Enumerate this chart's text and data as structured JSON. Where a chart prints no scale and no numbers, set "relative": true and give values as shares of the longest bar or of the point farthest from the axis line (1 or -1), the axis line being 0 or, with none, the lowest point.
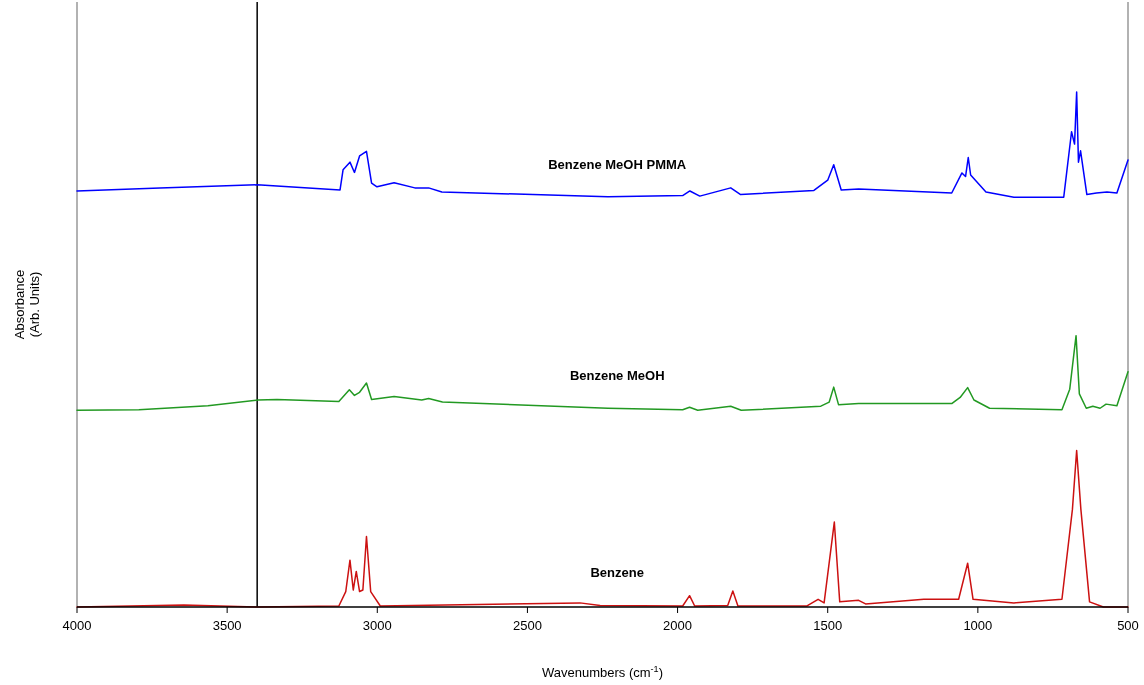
{
  "chart_data": {
    "type": "line",
    "relative": true,
    "xlabel": "Wavenumbers (cm$^{-1}$)",
    "ylabel": "Absorbance\n(Arb. Units)",
    "xlim": [
      4000,
      500
    ],
    "xticks": [
      4000,
      3500,
      3000,
      2500,
      2000,
      1500,
      1000,
      500
    ],
    "ref_lines": [
      {
        "axis": "x",
        "value": 3400,
        "color": "#000000"
      }
    ],
    "series": [
      {
        "name": "Benzene MeOH PMMA",
        "color": "#0000ff",
        "x": [
          4000,
          3724,
          3400,
          3124,
          3114,
          3091,
          3076,
          3059,
          3036,
          3019,
          3001,
          2944,
          2875,
          2829,
          2785,
          2232,
          1983,
          1959,
          1926,
          1823,
          1790,
          1546,
          1500,
          1480,
          1455,
          1397,
          1087,
          1053,
          1041,
          1032,
          1024,
          973,
          880,
          714,
          688,
          678,
          671,
          665,
          658,
          637,
          605,
          570,
          537,
          500
        ],
        "values": [
          0.808,
          0.814,
          0.82,
          0.81,
          0.849,
          0.864,
          0.844,
          0.876,
          0.885,
          0.823,
          0.816,
          0.824,
          0.814,
          0.814,
          0.806,
          0.797,
          0.799,
          0.808,
          0.798,
          0.814,
          0.801,
          0.809,
          0.829,
          0.859,
          0.81,
          0.812,
          0.804,
          0.843,
          0.836,
          0.873,
          0.839,
          0.806,
          0.796,
          0.796,
          0.923,
          0.899,
          1.0,
          0.864,
          0.886,
          0.801,
          0.804,
          0.806,
          0.804,
          0.868
        ]
      },
      {
        "name": "Benzene MeOH",
        "color": "#229922",
        "x": [
          4000,
          3794,
          3564,
          3397,
          3334,
          3128,
          3093,
          3076,
          3059,
          3036,
          3019,
          2944,
          2852,
          2829,
          2783,
          2232,
          1983,
          1960,
          1933,
          1823,
          1788,
          1523,
          1495,
          1480,
          1464,
          1397,
          1087,
          1059,
          1034,
          1013,
          961,
          720,
          694,
          673,
          662,
          639,
          617,
          593,
          573,
          537,
          500
        ],
        "values": [
          0.382,
          0.383,
          0.391,
          0.402,
          0.403,
          0.399,
          0.422,
          0.411,
          0.417,
          0.435,
          0.403,
          0.409,
          0.402,
          0.405,
          0.398,
          0.386,
          0.383,
          0.388,
          0.382,
          0.39,
          0.382,
          0.39,
          0.398,
          0.427,
          0.393,
          0.395,
          0.395,
          0.407,
          0.426,
          0.402,
          0.386,
          0.383,
          0.423,
          0.527,
          0.414,
          0.386,
          0.39,
          0.386,
          0.394,
          0.391,
          0.457
        ]
      },
      {
        "name": "Benzene",
        "color": "#cc1111",
        "x": [
          4000,
          3644,
          3400,
          3128,
          3105,
          3091,
          3080,
          3070,
          3059,
          3048,
          3036,
          3022,
          2990,
          2325,
          2258,
          1983,
          1960,
          1943,
          1833,
          1816,
          1799,
          1569,
          1532,
          1512,
          1478,
          1460,
          1397,
          1374,
          1180,
          1064,
          1034,
          1016,
          880,
          720,
          685,
          671,
          657,
          628,
          582,
          500
        ],
        "values": [
          0.0,
          0.004,
          0.0,
          0.002,
          0.03,
          0.091,
          0.033,
          0.069,
          0.03,
          0.033,
          0.137,
          0.03,
          0.002,
          0.008,
          0.003,
          0.002,
          0.022,
          0.002,
          0.003,
          0.031,
          0.002,
          0.002,
          0.015,
          0.008,
          0.165,
          0.01,
          0.013,
          0.006,
          0.015,
          0.015,
          0.085,
          0.015,
          0.008,
          0.015,
          0.19,
          0.304,
          0.19,
          0.01,
          0.0,
          0.0
        ]
      }
    ]
  }
}
